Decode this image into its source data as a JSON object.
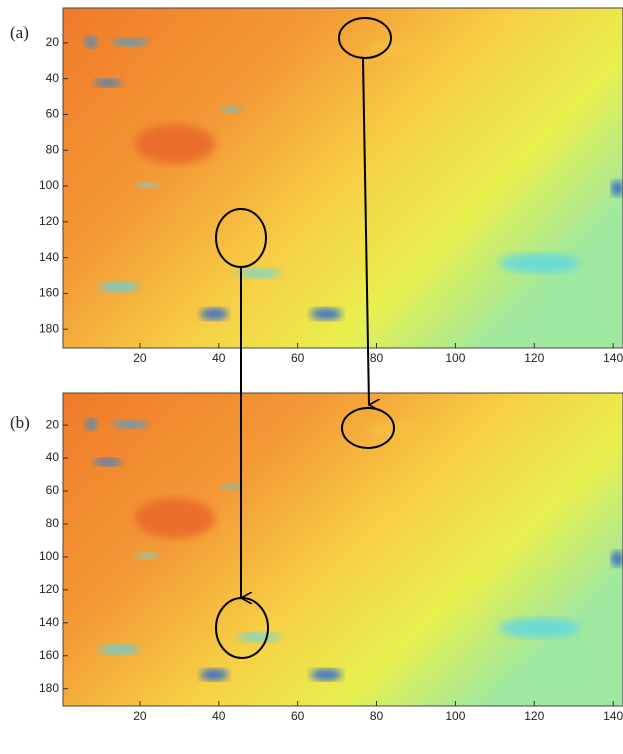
{
  "chart_data": [
    {
      "type": "heatmap",
      "label": "(a)",
      "xlim": [
        0.5,
        142.5
      ],
      "ylim": [
        0.5,
        190.5
      ],
      "y_reversed": true,
      "xticks": [
        20,
        40,
        60,
        80,
        100,
        120,
        140
      ],
      "yticks": [
        20,
        40,
        60,
        80,
        100,
        120,
        140,
        160,
        180
      ]
    },
    {
      "type": "heatmap",
      "label": "(b)",
      "xlim": [
        0.5,
        142.5
      ],
      "ylim": [
        0.5,
        190.5
      ],
      "y_reversed": true,
      "xticks": [
        20,
        40,
        60,
        80,
        100,
        120,
        140
      ],
      "yticks": [
        20,
        40,
        60,
        80,
        100,
        120,
        140,
        160,
        180
      ]
    }
  ]
}
